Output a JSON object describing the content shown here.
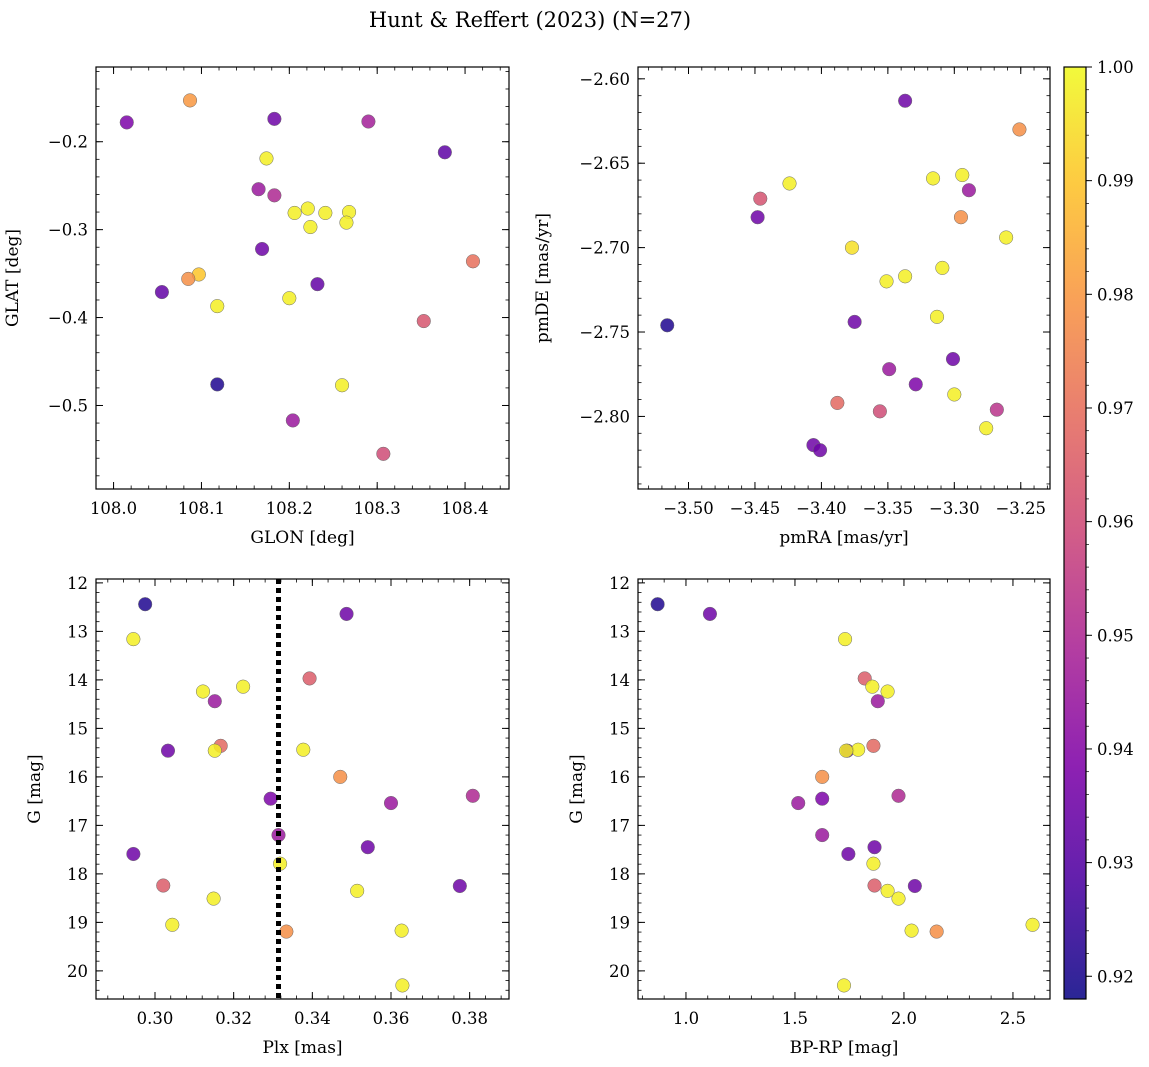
{
  "title": "Hunt & Reffert (2023) (N=27)",
  "colorbar": {
    "label": "",
    "range": [
      0.918,
      1.0
    ],
    "ticks": [
      "0.92",
      "0.93",
      "0.94",
      "0.95",
      "0.96",
      "0.97",
      "0.98",
      "0.99",
      "1.00"
    ]
  },
  "chart_data": [
    {
      "type": "scatter",
      "name": "glon-glat",
      "xlabel": "GLON [deg]",
      "ylabel": "GLAT [deg]",
      "xlim": [
        107.98,
        108.45
      ],
      "ylim": [
        -0.595,
        -0.115
      ],
      "xticks": [
        "108.0",
        "108.1",
        "108.2",
        "108.3",
        "108.4"
      ],
      "yticks": [
        "−0.2",
        "−0.3",
        "−0.4",
        "−0.5"
      ],
      "points": [
        {
          "x": 108.015,
          "y": -0.178,
          "c": 0.938
        },
        {
          "x": 108.087,
          "y": -0.153,
          "c": 0.98
        },
        {
          "x": 108.183,
          "y": -0.174,
          "c": 0.935
        },
        {
          "x": 108.29,
          "y": -0.177,
          "c": 0.947
        },
        {
          "x": 108.377,
          "y": -0.212,
          "c": 0.932
        },
        {
          "x": 108.174,
          "y": -0.219,
          "c": 0.998
        },
        {
          "x": 108.165,
          "y": -0.254,
          "c": 0.945
        },
        {
          "x": 108.183,
          "y": -0.261,
          "c": 0.95
        },
        {
          "x": 108.206,
          "y": -0.281,
          "c": 0.998
        },
        {
          "x": 108.221,
          "y": -0.276,
          "c": 0.998
        },
        {
          "x": 108.241,
          "y": -0.281,
          "c": 0.998
        },
        {
          "x": 108.268,
          "y": -0.28,
          "c": 0.998
        },
        {
          "x": 108.224,
          "y": -0.297,
          "c": 0.998
        },
        {
          "x": 108.265,
          "y": -0.292,
          "c": 0.998
        },
        {
          "x": 108.169,
          "y": -0.322,
          "c": 0.935
        },
        {
          "x": 108.097,
          "y": -0.351,
          "c": 0.99
        },
        {
          "x": 108.085,
          "y": -0.356,
          "c": 0.978
        },
        {
          "x": 108.409,
          "y": -0.336,
          "c": 0.97
        },
        {
          "x": 108.055,
          "y": -0.371,
          "c": 0.933
        },
        {
          "x": 108.232,
          "y": -0.362,
          "c": 0.933
        },
        {
          "x": 108.2,
          "y": -0.378,
          "c": 0.998
        },
        {
          "x": 108.118,
          "y": -0.387,
          "c": 0.998
        },
        {
          "x": 108.353,
          "y": -0.404,
          "c": 0.963
        },
        {
          "x": 108.118,
          "y": -0.476,
          "c": 0.921
        },
        {
          "x": 108.26,
          "y": -0.477,
          "c": 0.998
        },
        {
          "x": 108.204,
          "y": -0.517,
          "c": 0.945
        },
        {
          "x": 108.307,
          "y": -0.555,
          "c": 0.96
        }
      ]
    },
    {
      "type": "scatter",
      "name": "pmra-pmde",
      "xlabel": "pmRA [mas/yr]",
      "ylabel": "pmDE [mas/yr]",
      "xlim": [
        -3.538,
        -3.228
      ],
      "ylim": [
        -2.843,
        -2.593
      ],
      "xticks": [
        "−3.50",
        "−3.45",
        "−3.40",
        "−3.35",
        "−3.30",
        "−3.25"
      ],
      "yticks": [
        "−2.60",
        "−2.65",
        "−2.70",
        "−2.75",
        "−2.80"
      ],
      "points": [
        {
          "x": -3.337,
          "y": -2.613,
          "c": 0.935
        },
        {
          "x": -3.251,
          "y": -2.63,
          "c": 0.978
        },
        {
          "x": -3.294,
          "y": -2.657,
          "c": 0.998
        },
        {
          "x": -3.316,
          "y": -2.659,
          "c": 0.998
        },
        {
          "x": -3.289,
          "y": -2.666,
          "c": 0.945
        },
        {
          "x": -3.424,
          "y": -2.662,
          "c": 0.998
        },
        {
          "x": -3.446,
          "y": -2.671,
          "c": 0.962
        },
        {
          "x": -3.448,
          "y": -2.682,
          "c": 0.935
        },
        {
          "x": -3.295,
          "y": -2.682,
          "c": 0.978
        },
        {
          "x": -3.261,
          "y": -2.694,
          "c": 0.998
        },
        {
          "x": -3.377,
          "y": -2.7,
          "c": 0.995
        },
        {
          "x": -3.309,
          "y": -2.712,
          "c": 0.998
        },
        {
          "x": -3.337,
          "y": -2.717,
          "c": 0.998
        },
        {
          "x": -3.351,
          "y": -2.72,
          "c": 0.998
        },
        {
          "x": -3.313,
          "y": -2.741,
          "c": 0.998
        },
        {
          "x": -3.375,
          "y": -2.744,
          "c": 0.935
        },
        {
          "x": -3.516,
          "y": -2.746,
          "c": 0.921
        },
        {
          "x": -3.301,
          "y": -2.766,
          "c": 0.935
        },
        {
          "x": -3.349,
          "y": -2.772,
          "c": 0.945
        },
        {
          "x": -3.329,
          "y": -2.781,
          "c": 0.938
        },
        {
          "x": -3.3,
          "y": -2.787,
          "c": 0.998
        },
        {
          "x": -3.388,
          "y": -2.792,
          "c": 0.968
        },
        {
          "x": -3.356,
          "y": -2.797,
          "c": 0.96
        },
        {
          "x": -3.268,
          "y": -2.796,
          "c": 0.953
        },
        {
          "x": -3.276,
          "y": -2.807,
          "c": 0.998
        },
        {
          "x": -3.406,
          "y": -2.817,
          "c": 0.935
        },
        {
          "x": -3.401,
          "y": -2.82,
          "c": 0.935
        }
      ]
    },
    {
      "type": "scatter",
      "name": "plx-g",
      "xlabel": "Plx [mas]",
      "ylabel": "G [mag]",
      "xlim": [
        0.285,
        0.39
      ],
      "ylim": [
        20.58,
        11.92
      ],
      "xticks": [
        "0.30",
        "0.32",
        "0.34",
        "0.36",
        "0.38"
      ],
      "yticks": [
        "12",
        "13",
        "14",
        "15",
        "16",
        "17",
        "18",
        "19",
        "20"
      ],
      "vline": 0.3314,
      "points": [
        {
          "x": 0.2975,
          "y": 12.44,
          "c": 0.921
        },
        {
          "x": 0.3487,
          "y": 12.64,
          "c": 0.935
        },
        {
          "x": 0.2945,
          "y": 13.16,
          "c": 0.998
        },
        {
          "x": 0.3393,
          "y": 13.97,
          "c": 0.965
        },
        {
          "x": 0.3224,
          "y": 14.14,
          "c": 0.998
        },
        {
          "x": 0.3122,
          "y": 14.24,
          "c": 0.998
        },
        {
          "x": 0.3152,
          "y": 14.44,
          "c": 0.945
        },
        {
          "x": 0.3167,
          "y": 15.36,
          "c": 0.968
        },
        {
          "x": 0.3033,
          "y": 15.46,
          "c": 0.935
        },
        {
          "x": 0.3377,
          "y": 15.44,
          "c": 0.998
        },
        {
          "x": 0.3152,
          "y": 15.46,
          "c": 0.998
        },
        {
          "x": 0.3471,
          "y": 16.0,
          "c": 0.978
        },
        {
          "x": 0.3808,
          "y": 16.39,
          "c": 0.95
        },
        {
          "x": 0.3294,
          "y": 16.45,
          "c": 0.938
        },
        {
          "x": 0.36,
          "y": 16.54,
          "c": 0.945
        },
        {
          "x": 0.3314,
          "y": 17.2,
          "c": 0.945
        },
        {
          "x": 0.3541,
          "y": 17.45,
          "c": 0.935
        },
        {
          "x": 0.2945,
          "y": 17.59,
          "c": 0.935
        },
        {
          "x": 0.3318,
          "y": 17.79,
          "c": 0.998
        },
        {
          "x": 0.3775,
          "y": 18.25,
          "c": 0.935
        },
        {
          "x": 0.3021,
          "y": 18.24,
          "c": 0.965
        },
        {
          "x": 0.3514,
          "y": 18.35,
          "c": 0.998
        },
        {
          "x": 0.3149,
          "y": 18.51,
          "c": 0.998
        },
        {
          "x": 0.3044,
          "y": 19.05,
          "c": 0.998
        },
        {
          "x": 0.3627,
          "y": 19.17,
          "c": 0.998
        },
        {
          "x": 0.3334,
          "y": 19.19,
          "c": 0.978
        },
        {
          "x": 0.3629,
          "y": 20.3,
          "c": 0.998
        }
      ]
    },
    {
      "type": "scatter",
      "name": "bprp-g",
      "xlabel": "BP-RP [mag]",
      "ylabel": "G [mag]",
      "xlim": [
        0.78,
        2.67
      ],
      "ylim": [
        20.58,
        11.92
      ],
      "xticks": [
        "1.0",
        "1.5",
        "2.0",
        "2.5"
      ],
      "yticks": [
        "12",
        "13",
        "14",
        "15",
        "16",
        "17",
        "18",
        "19",
        "20"
      ],
      "points": [
        {
          "x": 0.87,
          "y": 12.44,
          "c": 0.921
        },
        {
          "x": 1.11,
          "y": 12.64,
          "c": 0.935
        },
        {
          "x": 1.73,
          "y": 13.16,
          "c": 0.998
        },
        {
          "x": 1.82,
          "y": 13.97,
          "c": 0.965
        },
        {
          "x": 1.855,
          "y": 14.14,
          "c": 0.998
        },
        {
          "x": 1.925,
          "y": 14.24,
          "c": 0.998
        },
        {
          "x": 1.88,
          "y": 14.44,
          "c": 0.945
        },
        {
          "x": 1.86,
          "y": 15.36,
          "c": 0.968
        },
        {
          "x": 1.74,
          "y": 15.46,
          "c": 0.935
        },
        {
          "x": 1.79,
          "y": 15.44,
          "c": 0.998
        },
        {
          "x": 1.735,
          "y": 15.46,
          "c": 0.998
        },
        {
          "x": 1.625,
          "y": 16.0,
          "c": 0.978
        },
        {
          "x": 1.975,
          "y": 16.39,
          "c": 0.95
        },
        {
          "x": 1.625,
          "y": 16.45,
          "c": 0.938
        },
        {
          "x": 1.515,
          "y": 16.54,
          "c": 0.945
        },
        {
          "x": 1.625,
          "y": 17.2,
          "c": 0.945
        },
        {
          "x": 1.865,
          "y": 17.45,
          "c": 0.935
        },
        {
          "x": 1.745,
          "y": 17.59,
          "c": 0.935
        },
        {
          "x": 1.86,
          "y": 17.79,
          "c": 0.998
        },
        {
          "x": 2.05,
          "y": 18.25,
          "c": 0.935
        },
        {
          "x": 1.865,
          "y": 18.24,
          "c": 0.965
        },
        {
          "x": 1.925,
          "y": 18.35,
          "c": 0.998
        },
        {
          "x": 1.975,
          "y": 18.51,
          "c": 0.998
        },
        {
          "x": 2.59,
          "y": 19.05,
          "c": 0.998
        },
        {
          "x": 2.035,
          "y": 19.17,
          "c": 0.998
        },
        {
          "x": 2.15,
          "y": 19.19,
          "c": 0.978
        },
        {
          "x": 1.725,
          "y": 20.3,
          "c": 0.998
        }
      ]
    }
  ]
}
